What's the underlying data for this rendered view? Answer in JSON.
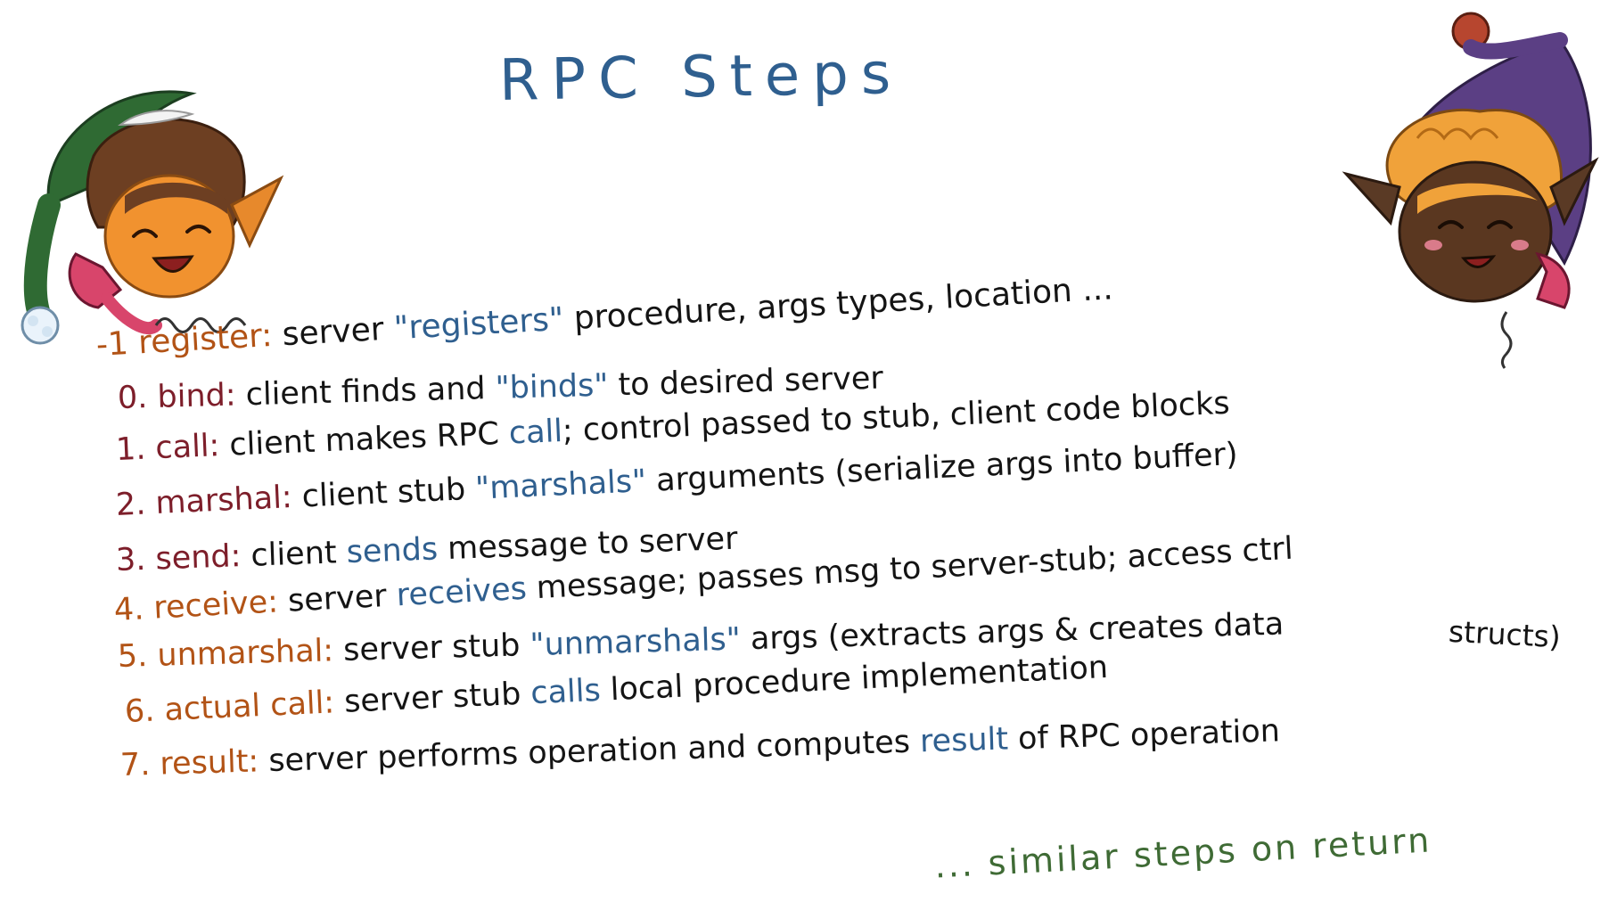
{
  "title": "RPC Steps",
  "steps": [
    {
      "term": "-1 register",
      "sep": ":",
      "segments": [
        {
          "text": " server ",
          "hl": false
        },
        {
          "text": "\"registers\"",
          "hl": true
        },
        {
          "text": " procedure, args types, location ...",
          "hl": false
        }
      ]
    },
    {
      "term": "0. bind",
      "sep": ":",
      "segments": [
        {
          "text": " client finds and ",
          "hl": false
        },
        {
          "text": "\"binds\"",
          "hl": true
        },
        {
          "text": " to desired server",
          "hl": false
        }
      ]
    },
    {
      "term": "1. call",
      "sep": ":",
      "segments": [
        {
          "text": " client makes RPC ",
          "hl": false
        },
        {
          "text": "call",
          "hl": true
        },
        {
          "text": "; control passed to stub, client code blocks",
          "hl": false
        }
      ]
    },
    {
      "term": "2. marshal",
      "sep": ":",
      "segments": [
        {
          "text": " client stub ",
          "hl": false
        },
        {
          "text": "\"marshals\"",
          "hl": true
        },
        {
          "text": " arguments (serialize args into buffer)",
          "hl": false
        }
      ]
    },
    {
      "term": "3. send",
      "sep": ":",
      "segments": [
        {
          "text": " client ",
          "hl": false
        },
        {
          "text": "sends",
          "hl": true
        },
        {
          "text": " message to server",
          "hl": false
        }
      ]
    },
    {
      "term": "4. receive",
      "sep": ":",
      "segments": [
        {
          "text": " server ",
          "hl": false
        },
        {
          "text": "receives",
          "hl": true
        },
        {
          "text": " message; passes msg to server-stub; access ctrl",
          "hl": false
        }
      ]
    },
    {
      "term": "5. unmarshal",
      "sep": ":",
      "segments": [
        {
          "text": " server stub ",
          "hl": false
        },
        {
          "text": "\"unmarshals\"",
          "hl": true
        },
        {
          "text": " args (extracts args & creates data",
          "hl": false
        }
      ]
    },
    {
      "term": "6. actual call",
      "sep": ":",
      "segments": [
        {
          "text": " server stub ",
          "hl": false
        },
        {
          "text": "calls",
          "hl": true
        },
        {
          "text": " local procedure implementation",
          "hl": false
        }
      ]
    },
    {
      "term": "7. result",
      "sep": ":",
      "segments": [
        {
          "text": " server performs operation and computes ",
          "hl": false
        },
        {
          "text": "result",
          "hl": true
        },
        {
          "text": " of RPC operation",
          "hl": false
        }
      ]
    }
  ],
  "step5_continuation": "structs)",
  "footer": "... similar steps on return",
  "colors": {
    "term_red": "#7d1e2a",
    "term_orange": "#b25316",
    "highlight_blue": "#2f5f8f",
    "body_text": "#141414",
    "footer_green": "#3f6b35"
  },
  "decorations": [
    "elf-left-green-hat-icon",
    "elf-right-purple-hat-icon"
  ]
}
